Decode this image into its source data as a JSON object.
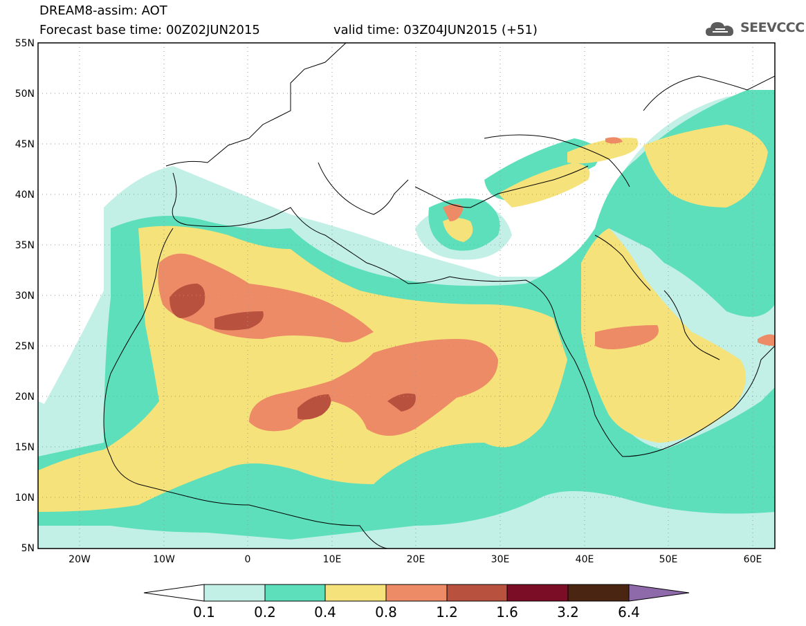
{
  "header": {
    "model_title": "DREAM8-assim: AOT",
    "base_time": "Forecast base time: 00Z02JUN2015",
    "valid_time": "valid time: 03Z04JUN2015 (+51)",
    "logo_text": "SEEVCCC"
  },
  "map": {
    "lon_range": [
      -25,
      65
    ],
    "lat_range": [
      5,
      55
    ],
    "lat_labels": [
      "55N",
      "50N",
      "45N",
      "40N",
      "35N",
      "30N",
      "25N",
      "20N",
      "15N",
      "10N",
      "5N"
    ],
    "lon_labels": [
      "20W",
      "10W",
      "0",
      "10E",
      "20E",
      "30E",
      "40E",
      "50E",
      "60E"
    ]
  },
  "colorbar": {
    "levels": [
      "0.1",
      "0.2",
      "0.4",
      "0.8",
      "1.2",
      "1.6",
      "3.2",
      "6.4"
    ],
    "colors": [
      "#ffffff",
      "#c2efe6",
      "#5cdfba",
      "#f6e27a",
      "#ec8b66",
      "#b8513e",
      "#7b0e26",
      "#4a2612",
      "#8f6aaa"
    ]
  }
}
